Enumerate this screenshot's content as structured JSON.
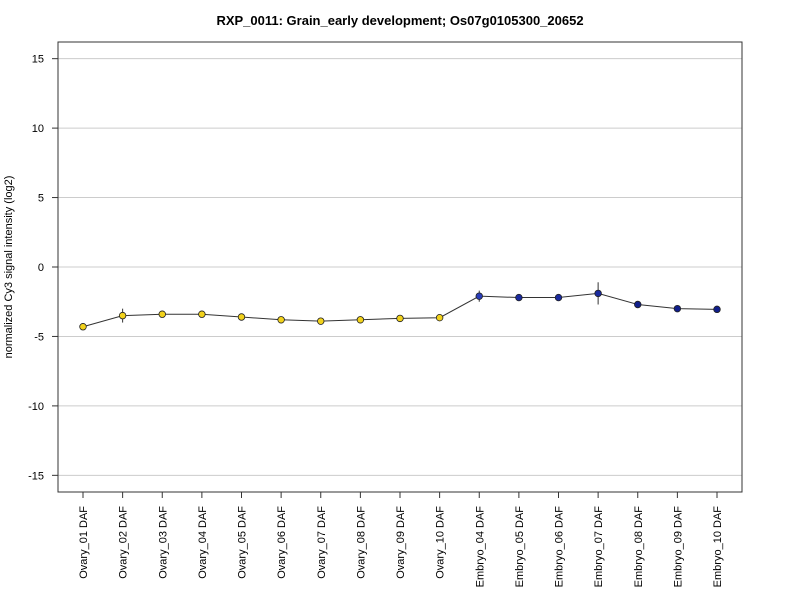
{
  "chart_data": {
    "type": "line",
    "title": "RXP_0011: Grain_early development; Os07g0105300_20652",
    "xlabel": "",
    "ylabel": "normalized Cy3 signal intensity (log2)",
    "ylim": [
      -16.2,
      16.2
    ],
    "yticks": [
      -15,
      -10,
      -5,
      0,
      5,
      10,
      15
    ],
    "grid": true,
    "categories": [
      "Ovary_01 DAF",
      "Ovary_02 DAF",
      "Ovary_03 DAF",
      "Ovary_04 DAF",
      "Ovary_05 DAF",
      "Ovary_06 DAF",
      "Ovary_07 DAF",
      "Ovary_08 DAF",
      "Ovary_09 DAF",
      "Ovary_10 DAF",
      "Embryo_04 DAF",
      "Embryo_05 DAF",
      "Embryo_06 DAF",
      "Embryo_07 DAF",
      "Embryo_08 DAF",
      "Embryo_09 DAF",
      "Embryo_10 DAF"
    ],
    "values": [
      -4.3,
      -3.5,
      -3.4,
      -3.4,
      -3.6,
      -3.8,
      -3.9,
      -3.8,
      -3.7,
      -3.65,
      -2.1,
      -2.2,
      -2.2,
      -1.9,
      -2.7,
      -3.0,
      -3.05
    ],
    "errors": [
      0.25,
      0.5,
      0.2,
      0.15,
      0.2,
      0.15,
      0.12,
      0.25,
      0.15,
      0.15,
      0.4,
      0.15,
      0.15,
      0.8,
      0.15,
      0.12,
      0.25
    ],
    "point_colors": [
      "#f2d21c",
      "#f2d21c",
      "#f2d21c",
      "#f2d21c",
      "#f2d21c",
      "#f2d21c",
      "#f2d21c",
      "#f2d21c",
      "#f2d21c",
      "#f2d21c",
      "#2a3db8",
      "#1a2a9e",
      "#1a2a9e",
      "#1a2a9e",
      "#101e8a",
      "#101e8a",
      "#101e8a"
    ],
    "line_color": "#333333",
    "grid_color": "#cccccc"
  }
}
